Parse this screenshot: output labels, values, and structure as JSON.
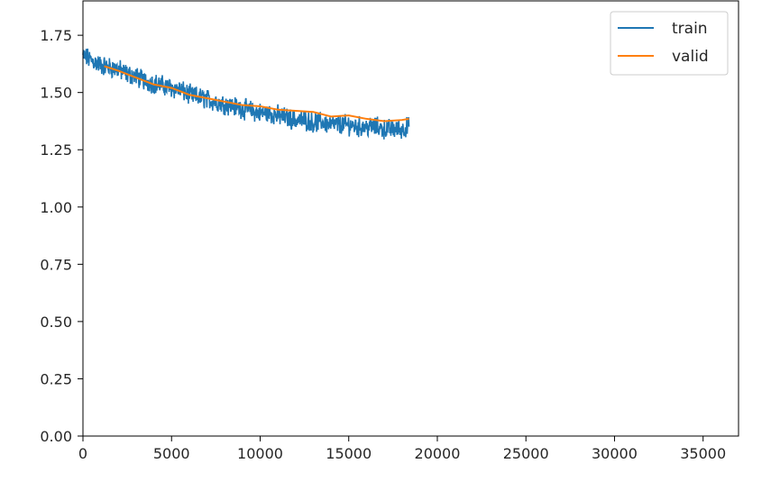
{
  "chart_data": {
    "type": "line",
    "title": "",
    "xlabel": "",
    "ylabel": "",
    "xlim": [
      0,
      37000
    ],
    "ylim": [
      0.0,
      1.9
    ],
    "xticks": [
      0,
      5000,
      10000,
      15000,
      20000,
      25000,
      30000,
      35000
    ],
    "xtick_labels": [
      "0",
      "5000",
      "10000",
      "15000",
      "20000",
      "25000",
      "30000",
      "35000"
    ],
    "yticks": [
      0.0,
      0.25,
      0.5,
      0.75,
      1.0,
      1.25,
      1.5,
      1.75
    ],
    "ytick_labels": [
      "0.00",
      "0.25",
      "0.50",
      "0.75",
      "1.00",
      "1.25",
      "1.50",
      "1.75"
    ],
    "grid": false,
    "legend_position": "top-right",
    "series": [
      {
        "name": "train",
        "color": "#1f77b4",
        "x": [
          0,
          500,
          1000,
          1500,
          2000,
          2500,
          3000,
          3500,
          4000,
          4500,
          5000,
          5500,
          6000,
          6500,
          7000,
          7500,
          8000,
          8500,
          9000,
          9500,
          10000,
          10500,
          11000,
          11500,
          12000,
          12500,
          13000,
          13500,
          14000,
          14500,
          15000,
          15500,
          16000,
          16500,
          17000,
          17500,
          18000,
          18400
        ],
        "y": [
          1.66,
          1.64,
          1.62,
          1.61,
          1.6,
          1.58,
          1.57,
          1.55,
          1.54,
          1.53,
          1.52,
          1.51,
          1.49,
          1.48,
          1.47,
          1.46,
          1.45,
          1.44,
          1.43,
          1.42,
          1.41,
          1.41,
          1.4,
          1.39,
          1.38,
          1.38,
          1.37,
          1.37,
          1.36,
          1.36,
          1.36,
          1.35,
          1.35,
          1.35,
          1.34,
          1.34,
          1.34,
          1.35
        ],
        "noise": 0.035
      },
      {
        "name": "valid",
        "color": "#ff7f0e",
        "x": [
          1200,
          2000,
          3000,
          4000,
          5000,
          6000,
          7000,
          8000,
          9000,
          10000,
          11000,
          12000,
          13000,
          14000,
          15000,
          16000,
          17000,
          18000,
          18400
        ],
        "y": [
          1.615,
          1.595,
          1.565,
          1.535,
          1.52,
          1.49,
          1.475,
          1.46,
          1.445,
          1.44,
          1.425,
          1.42,
          1.415,
          1.395,
          1.4,
          1.385,
          1.375,
          1.38,
          1.385
        ]
      }
    ]
  }
}
